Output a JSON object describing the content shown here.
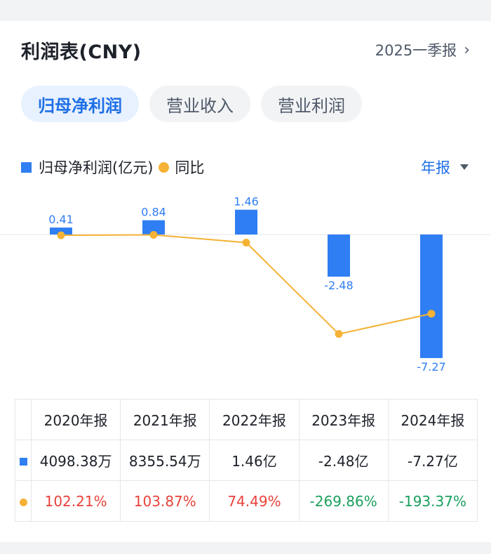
{
  "header": {
    "title": "利润表(CNY)",
    "period_label": "2025一季报"
  },
  "tabs": [
    {
      "label": "归母净利润",
      "active": true
    },
    {
      "label": "营业收入",
      "active": false
    },
    {
      "label": "营业利润",
      "active": false
    }
  ],
  "legend": {
    "bar_label": "归母净利润(亿元)",
    "line_label": "同比"
  },
  "period_type": "年报",
  "colors": {
    "bar": "#2f7ef3",
    "line": "#f5b236",
    "positive": "#e8423b",
    "negative": "#1aa05c"
  },
  "chart_data": {
    "type": "bar",
    "categories": [
      "2020年报",
      "2021年报",
      "2022年报",
      "2023年报",
      "2024年报"
    ],
    "series": [
      {
        "name": "归母净利润(亿元)",
        "type": "bar",
        "values": [
          0.41,
          0.84,
          1.46,
          -2.48,
          -7.27
        ]
      },
      {
        "name": "同比",
        "type": "line",
        "values": [
          102.21,
          103.87,
          74.49,
          -269.86,
          -193.37
        ],
        "unit": "%"
      }
    ]
  },
  "table": {
    "headers": [
      "2020年报",
      "2021年报",
      "2022年报",
      "2023年报",
      "2024年报"
    ],
    "values": [
      "4098.38万",
      "8355.54万",
      "1.46亿",
      "-2.48亿",
      "-7.27亿"
    ],
    "yoy": [
      "102.21%",
      "103.87%",
      "74.49%",
      "-269.86%",
      "-193.37%"
    ]
  }
}
